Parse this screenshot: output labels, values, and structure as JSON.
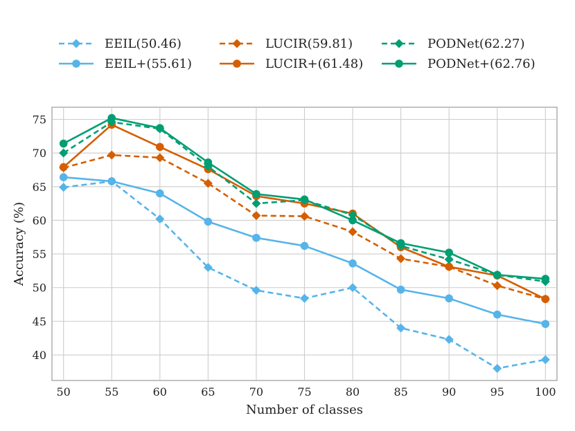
{
  "chart_data": {
    "type": "line",
    "title": "",
    "xlabel": "Number of classes",
    "ylabel": "Accuracy (%)",
    "x": [
      50,
      55,
      60,
      65,
      70,
      75,
      80,
      85,
      90,
      95,
      100
    ],
    "xticks": [
      "50",
      "55",
      "60",
      "65",
      "70",
      "75",
      "80",
      "85",
      "90",
      "95",
      "100"
    ],
    "yticks": [
      "40",
      "45",
      "50",
      "55",
      "60",
      "65",
      "70",
      "75"
    ],
    "ytick_values": [
      40,
      45,
      50,
      55,
      60,
      65,
      70,
      75
    ],
    "xlim": [
      48.8,
      101.2
    ],
    "ylim": [
      36.2,
      76.8
    ],
    "grid": true,
    "legend_position": "top",
    "series": [
      {
        "name": "EEIL(50.46)",
        "color": "#56B4E9",
        "linestyle": "dashed",
        "marker": "diamond",
        "values": [
          64.9,
          65.8,
          60.2,
          53.0,
          49.6,
          48.4,
          50.0,
          44.0,
          42.3,
          38.0,
          39.3
        ]
      },
      {
        "name": "EEIL+(55.61)",
        "color": "#56B4E9",
        "linestyle": "solid",
        "marker": "circle",
        "values": [
          66.4,
          65.8,
          64.0,
          59.8,
          57.4,
          56.2,
          53.6,
          49.7,
          48.4,
          46.0,
          44.6
        ]
      },
      {
        "name": "LUCIR(59.81)",
        "color": "#D55E00",
        "linestyle": "dashed",
        "marker": "diamond",
        "values": [
          67.8,
          69.7,
          69.3,
          65.5,
          60.7,
          60.6,
          58.3,
          54.3,
          53.1,
          50.3,
          48.3
        ]
      },
      {
        "name": "LUCIR+(61.48)",
        "color": "#D55E00",
        "linestyle": "solid",
        "marker": "circle",
        "values": [
          67.9,
          74.2,
          70.9,
          67.6,
          63.6,
          62.5,
          61.0,
          56.0,
          53.1,
          51.8,
          48.3
        ]
      },
      {
        "name": "PODNet(62.27)",
        "color": "#009E73",
        "linestyle": "dashed",
        "marker": "diamond",
        "values": [
          70.0,
          74.6,
          73.6,
          68.0,
          62.5,
          63.0,
          60.8,
          56.2,
          54.2,
          51.9,
          50.9
        ]
      },
      {
        "name": "PODNet+(62.76)",
        "color": "#009E73",
        "linestyle": "solid",
        "marker": "circle",
        "values": [
          71.4,
          75.2,
          73.7,
          68.6,
          63.9,
          63.1,
          60.0,
          56.6,
          55.2,
          51.9,
          51.3
        ]
      }
    ],
    "legend_order": [
      0,
      2,
      4,
      1,
      3,
      5
    ]
  }
}
